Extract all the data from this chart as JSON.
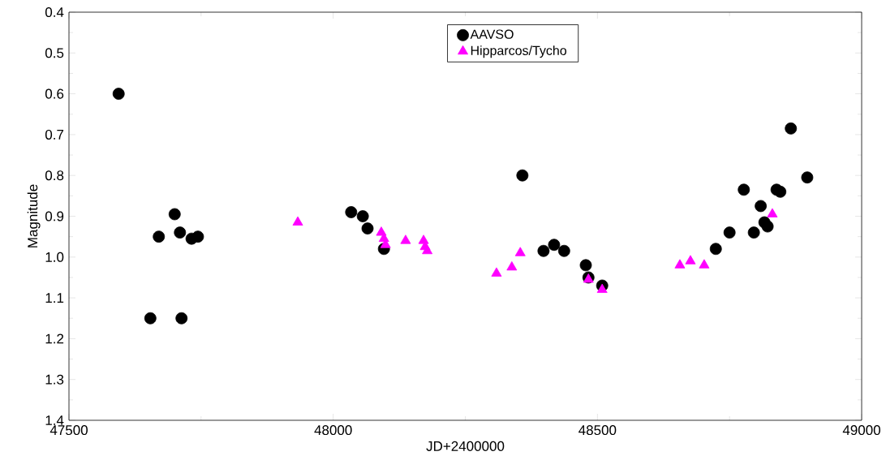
{
  "chart_data": {
    "type": "scatter",
    "xlabel": "JD+2400000",
    "ylabel": "Magnitude",
    "xlim": [
      47500,
      49000
    ],
    "xticks": [
      47500,
      48000,
      48500,
      49000
    ],
    "ylim": [
      1.4,
      0.4
    ],
    "yticks": [
      0.4,
      0.5,
      0.6,
      0.7,
      0.8,
      0.9,
      {
        "value": 1.0,
        "label": "1.0"
      },
      1.1,
      1.2,
      1.3,
      1.4
    ],
    "legend": "top",
    "grid": false,
    "series": [
      {
        "name": "AAVSO",
        "color": "#000000",
        "marker": "circle",
        "x": [
          47594,
          47654,
          47670,
          47700,
          47710,
          47713,
          47732,
          47744,
          48034,
          48056,
          48065,
          48096,
          48358,
          48398,
          48418,
          48437,
          48478,
          48483,
          48509,
          48724,
          48750,
          48777,
          48796,
          48809,
          48816,
          48822,
          48839,
          48846,
          48866,
          48897
        ],
        "values": [
          0.6,
          1.15,
          0.95,
          0.895,
          0.94,
          1.15,
          0.955,
          0.95,
          0.89,
          0.9,
          0.93,
          0.98,
          0.8,
          0.985,
          0.97,
          0.985,
          1.02,
          1.05,
          1.07,
          0.98,
          0.94,
          0.835,
          0.94,
          0.875,
          0.915,
          0.925,
          0.835,
          0.84,
          0.685,
          0.805
        ]
      },
      {
        "name": "Hipparcos/Tycho",
        "color": "#ff00ff",
        "marker": "triangle",
        "x": [
          47933,
          48091,
          48096,
          48099,
          48137,
          48171,
          48174,
          48178,
          48309,
          48338,
          48354,
          48483,
          48509,
          48656,
          48676,
          48702,
          48831
        ],
        "values": [
          0.915,
          0.94,
          0.955,
          0.97,
          0.96,
          0.96,
          0.975,
          0.985,
          1.04,
          1.025,
          0.99,
          1.055,
          1.08,
          1.02,
          1.01,
          1.02,
          0.895
        ]
      }
    ]
  }
}
